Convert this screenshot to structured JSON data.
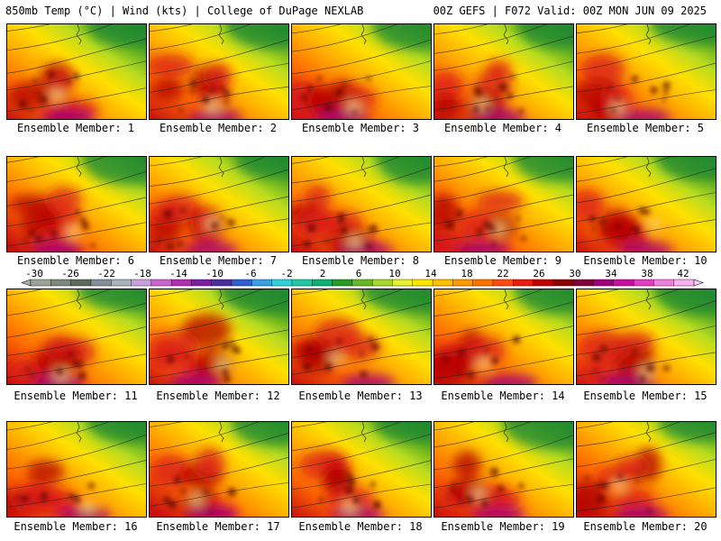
{
  "header": {
    "left": "850mb Temp (°C) | Wind (kts) | College of DuPage NEXLAB",
    "right": "00Z GEFS | F072 Valid: 00Z MON JUN 09 2025"
  },
  "members": [
    "Ensemble Member: 1",
    "Ensemble Member: 2",
    "Ensemble Member: 3",
    "Ensemble Member: 4",
    "Ensemble Member: 5",
    "Ensemble Member: 6",
    "Ensemble Member: 7",
    "Ensemble Member: 8",
    "Ensemble Member: 9",
    "Ensemble Member: 10",
    "Ensemble Member: 11",
    "Ensemble Member: 12",
    "Ensemble Member: 13",
    "Ensemble Member: 14",
    "Ensemble Member: 15",
    "Ensemble Member: 16",
    "Ensemble Member: 17",
    "Ensemble Member: 18",
    "Ensemble Member: 19",
    "Ensemble Member: 20"
  ],
  "colorbar": {
    "tick_labels": [
      "-30",
      "-26",
      "-22",
      "-18",
      "-14",
      "-10",
      "-6",
      "-2",
      "2",
      "6",
      "10",
      "14",
      "18",
      "22",
      "26",
      "30",
      "34",
      "38",
      "42"
    ],
    "colors": [
      "#9aa59a",
      "#7d877d",
      "#5f695f",
      "#858f98",
      "#a9b3bc",
      "#c9a0dc",
      "#cc66cc",
      "#b030b0",
      "#7a1fa0",
      "#4b2d9e",
      "#2f5fd0",
      "#3aa0e0",
      "#30d0d8",
      "#20c8a0",
      "#10b070",
      "#289a28",
      "#66b82a",
      "#a8d830",
      "#e8f030",
      "#ffe400",
      "#ffc000",
      "#ff9a00",
      "#ff7200",
      "#ff4a10",
      "#e81c10",
      "#c00000",
      "#8a0000",
      "#80003a",
      "#a0007a",
      "#c8109e",
      "#e040c0",
      "#f080e0",
      "#f8b0f0"
    ]
  },
  "legend_colors": {
    "cold_green": "#1f8a2e",
    "warm_red": "#c00000",
    "hot_magenta": "#a0007a"
  }
}
